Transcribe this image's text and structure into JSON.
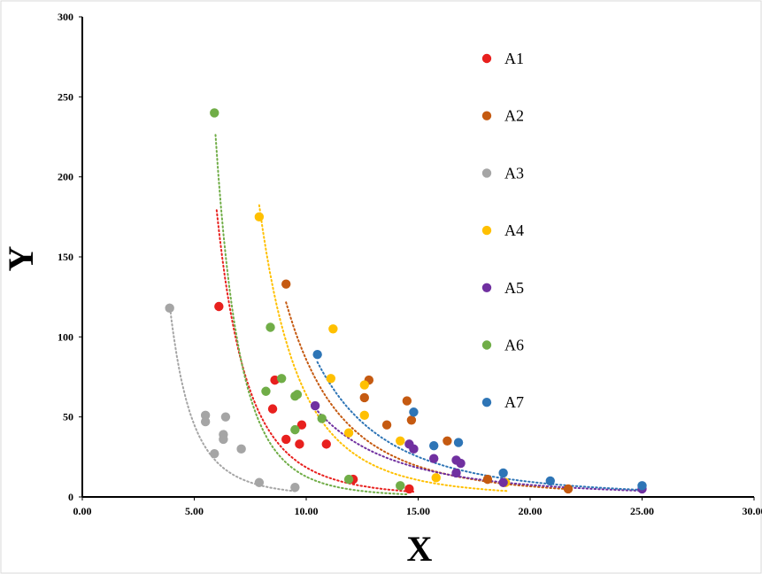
{
  "chart_data": {
    "type": "scatter",
    "title": "",
    "xlabel": "X",
    "ylabel": "Y",
    "xlim": [
      0,
      30
    ],
    "ylim": [
      0,
      300
    ],
    "x_ticks": [
      "0.00",
      "5.00",
      "10.00",
      "15.00",
      "20.00",
      "25.00",
      "30.00"
    ],
    "y_ticks": [
      "0",
      "50",
      "100",
      "150",
      "200",
      "250",
      "300"
    ],
    "grid": false,
    "legend_position": "inside-right",
    "trendlines": "dotted",
    "series": [
      {
        "name": "A1",
        "color": "#e8201e",
        "points": [
          [
            6.1,
            119
          ],
          [
            8.5,
            55
          ],
          [
            8.6,
            73
          ],
          [
            9.1,
            36
          ],
          [
            9.7,
            33
          ],
          [
            9.8,
            45
          ],
          [
            10.9,
            33
          ],
          [
            12.1,
            11
          ],
          [
            14.6,
            5
          ]
        ],
        "trend": {
          "a": 520000.0,
          "b": 4.45,
          "from": 6.0,
          "to": 14.8
        }
      },
      {
        "name": "A2",
        "color": "#c55a11",
        "points": [
          [
            9.1,
            133
          ],
          [
            12.6,
            62
          ],
          [
            12.8,
            73
          ],
          [
            13.6,
            45
          ],
          [
            14.5,
            60
          ],
          [
            14.7,
            48
          ],
          [
            16.3,
            35
          ],
          [
            18.1,
            11
          ],
          [
            21.7,
            5
          ]
        ],
        "trend": {
          "a": 430000.0,
          "b": 3.7,
          "from": 9.1,
          "to": 21.8
        }
      },
      {
        "name": "A3",
        "color": "#a5a5a5",
        "points": [
          [
            3.9,
            118
          ],
          [
            5.5,
            51
          ],
          [
            5.5,
            47
          ],
          [
            5.9,
            27
          ],
          [
            6.3,
            39
          ],
          [
            6.3,
            36
          ],
          [
            6.4,
            50
          ],
          [
            7.1,
            30
          ],
          [
            7.9,
            9
          ],
          [
            9.5,
            6
          ]
        ],
        "trend": {
          "a": 26000.0,
          "b": 3.95,
          "from": 3.9,
          "to": 9.6
        }
      },
      {
        "name": "A4",
        "color": "#ffc000",
        "points": [
          [
            7.9,
            175
          ],
          [
            11.1,
            74
          ],
          [
            11.2,
            105
          ],
          [
            11.9,
            40
          ],
          [
            12.6,
            51
          ],
          [
            12.6,
            70
          ],
          [
            14.2,
            35
          ],
          [
            15.8,
            12
          ],
          [
            18.9,
            9
          ]
        ],
        "trend": {
          "a": 1800000.0,
          "b": 4.45,
          "from": 7.9,
          "to": 19.0
        }
      },
      {
        "name": "A5",
        "color": "#7030a0",
        "points": [
          [
            10.4,
            57
          ],
          [
            14.6,
            33
          ],
          [
            14.8,
            30
          ],
          [
            15.7,
            24
          ],
          [
            16.7,
            23
          ],
          [
            16.7,
            15
          ],
          [
            16.9,
            21
          ],
          [
            18.8,
            9
          ],
          [
            25.0,
            5
          ]
        ],
        "trend": {
          "a": 70000.0,
          "b": 3.05,
          "from": 10.4,
          "to": 25.0
        }
      },
      {
        "name": "A6",
        "color": "#70ad47",
        "points": [
          [
            5.9,
            240
          ],
          [
            8.2,
            66
          ],
          [
            8.4,
            106
          ],
          [
            8.9,
            74
          ],
          [
            9.5,
            63
          ],
          [
            9.6,
            64
          ],
          [
            9.5,
            42
          ],
          [
            10.7,
            49
          ],
          [
            11.9,
            11
          ],
          [
            14.2,
            7
          ]
        ],
        "trend": {
          "a": 4500000.0,
          "b": 5.55,
          "from": 5.95,
          "to": 14.5
        }
      },
      {
        "name": "A7",
        "color": "#2e75b6",
        "points": [
          [
            10.5,
            89
          ],
          [
            14.8,
            53
          ],
          [
            15.7,
            32
          ],
          [
            16.8,
            34
          ],
          [
            18.8,
            15
          ],
          [
            20.9,
            10
          ],
          [
            25.0,
            7
          ]
        ],
        "trend": {
          "a": 250000.0,
          "b": 3.4,
          "from": 10.5,
          "to": 25.0
        }
      }
    ]
  }
}
